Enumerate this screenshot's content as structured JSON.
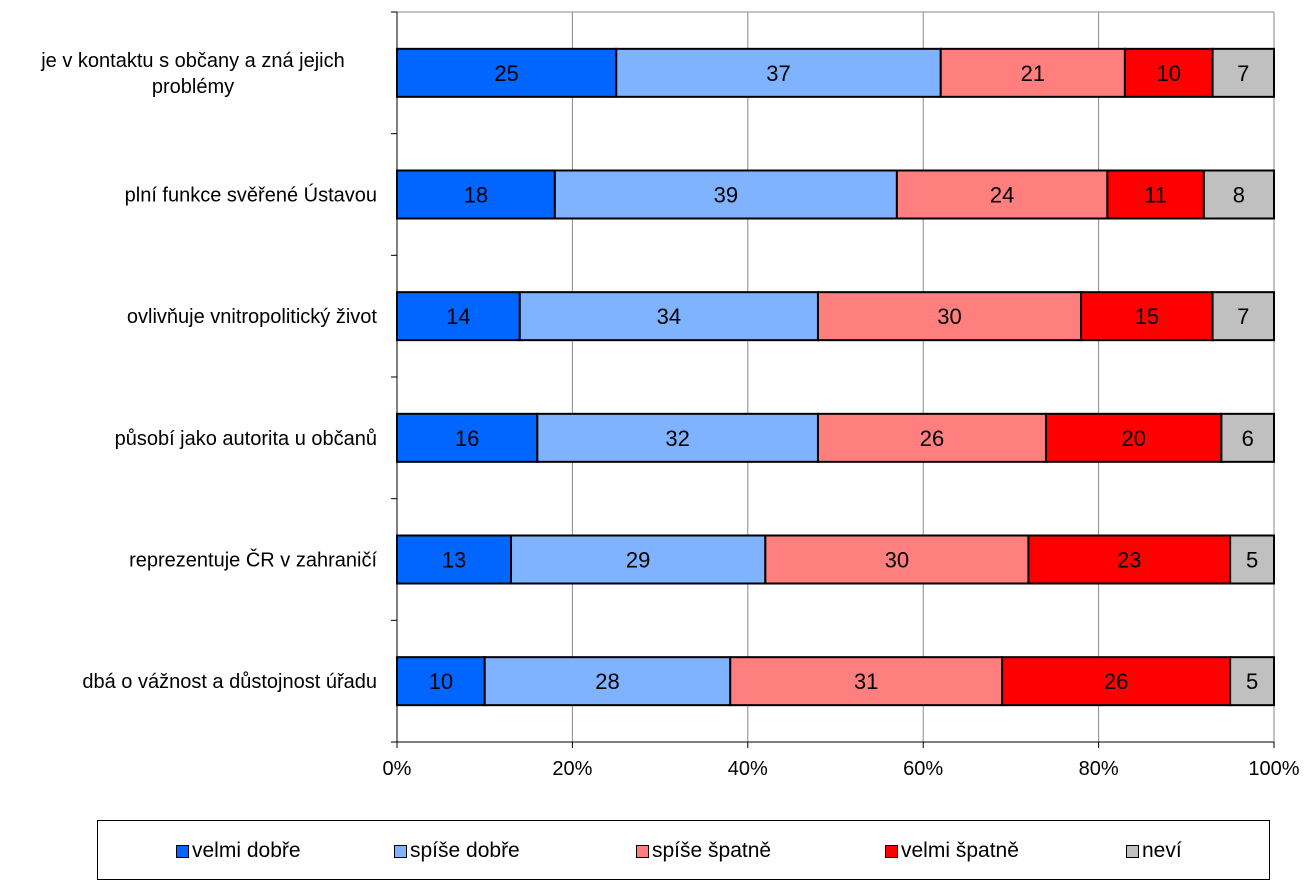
{
  "chart_data": {
    "type": "bar",
    "orientation": "horizontal",
    "stacked": "percent",
    "categories": [
      "je v kontaktu s občany a zná jejich problémy",
      "plní funkce svěřené Ústavou",
      "ovlivňuje vnitropolitický život",
      "působí jako autorita u občanů",
      "reprezentuje ČR v zahraničí",
      "dbá o vážnost a důstojnost úřadu"
    ],
    "category_lines": [
      [
        "je v kontaktu s občany a zná jejich",
        "problémy"
      ],
      [
        "plní funkce svěřené Ústavou"
      ],
      [
        "ovlivňuje vnitropolitický život"
      ],
      [
        "působí jako autorita u občanů"
      ],
      [
        "reprezentuje ČR v zahraničí"
      ],
      [
        "dbá o vážnost a důstojnost úřadu"
      ]
    ],
    "series": [
      {
        "name": "velmi dobře",
        "color": "#0066ff",
        "values": [
          25,
          18,
          14,
          16,
          13,
          10
        ]
      },
      {
        "name": "spíše dobře",
        "color": "#80b3ff",
        "values": [
          37,
          39,
          34,
          32,
          29,
          28
        ]
      },
      {
        "name": "spíše špatně",
        "color": "#ff7f7f",
        "values": [
          21,
          24,
          30,
          26,
          30,
          31
        ]
      },
      {
        "name": "velmi špatně",
        "color": "#ff0000",
        "values": [
          10,
          11,
          15,
          20,
          23,
          26
        ]
      },
      {
        "name": "neví",
        "color": "#c0c0c0",
        "values": [
          7,
          8,
          7,
          6,
          5,
          5
        ]
      }
    ],
    "x_ticks": [
      "0%",
      "20%",
      "40%",
      "60%",
      "80%",
      "100%"
    ],
    "xlim": [
      0,
      100
    ],
    "grid": true,
    "legend_position": "bottom"
  }
}
